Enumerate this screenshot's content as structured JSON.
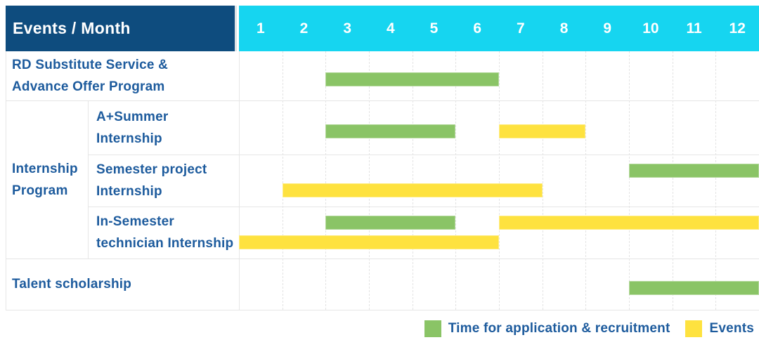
{
  "header": {
    "label": "Events / Month",
    "months": [
      "1",
      "2",
      "3",
      "4",
      "5",
      "6",
      "7",
      "8",
      "9",
      "10",
      "11",
      "12"
    ]
  },
  "group": {
    "label": "Internship Program",
    "label_lines": [
      "Internship",
      "Program"
    ]
  },
  "rows": [
    {
      "label": "RD Substitute Service & Advance Offer Program",
      "label_lines": [
        "RD Substitute Service &",
        "Advance Offer Program"
      ],
      "in_group": false,
      "bars": [
        {
          "type": "application",
          "start": 3,
          "end": 6,
          "lane": "center"
        }
      ]
    },
    {
      "label": "A+Summer Internship",
      "label_lines": [
        "A+Summer",
        "Internship"
      ],
      "in_group": true,
      "bars": [
        {
          "type": "application",
          "start": 3,
          "end": 5,
          "lane": "center"
        },
        {
          "type": "event",
          "start": 7,
          "end": 8,
          "lane": "center"
        }
      ]
    },
    {
      "label": "Semester project Internship",
      "label_lines": [
        "Semester project",
        "Internship"
      ],
      "in_group": true,
      "bars": [
        {
          "type": "application",
          "start": 10,
          "end": 12,
          "lane": "top"
        },
        {
          "type": "event",
          "start": 2,
          "end": 7,
          "lane": "bottom"
        }
      ]
    },
    {
      "label": "In-Semester technician Internship",
      "label_lines": [
        "In-Semester",
        "technician Internship"
      ],
      "in_group": true,
      "bars": [
        {
          "type": "application",
          "start": 3,
          "end": 5,
          "lane": "top"
        },
        {
          "type": "event",
          "start": 7,
          "end": 12,
          "lane": "top"
        },
        {
          "type": "event",
          "start": 1,
          "end": 6,
          "lane": "bottom"
        }
      ]
    },
    {
      "label": "Talent scholarship",
      "label_lines": [
        "Talent scholarship"
      ],
      "in_group": false,
      "bars": [
        {
          "type": "application",
          "start": 10,
          "end": 12,
          "lane": "center"
        }
      ]
    }
  ],
  "legend": {
    "items": [
      {
        "type": "application",
        "label": "Time for application & recruitment"
      },
      {
        "type": "event",
        "label": "Events"
      }
    ]
  },
  "colors": {
    "header_bg": "#0e4c7e",
    "months_bg": "#16d5f0",
    "header_text": "#ffffff",
    "label_text": "#1d5b9d",
    "application": "#8ac466",
    "event": "#fee23f"
  },
  "chart_data": {
    "type": "gantt",
    "title": "Events / Month",
    "x": {
      "label": "Month",
      "ticks": [
        1,
        2,
        3,
        4,
        5,
        6,
        7,
        8,
        9,
        10,
        11,
        12
      ]
    },
    "legend": [
      {
        "name": "Time for application & recruitment",
        "color": "#8ac466"
      },
      {
        "name": "Events",
        "color": "#fee23f"
      }
    ],
    "tasks": [
      {
        "row": "RD Substitute Service & Advance Offer Program",
        "group": null,
        "spans": [
          {
            "series": "Time for application & recruitment",
            "start_month": 3,
            "end_month": 6
          }
        ]
      },
      {
        "row": "A+Summer Internship",
        "group": "Internship Program",
        "spans": [
          {
            "series": "Time for application & recruitment",
            "start_month": 3,
            "end_month": 5
          },
          {
            "series": "Events",
            "start_month": 7,
            "end_month": 8
          }
        ]
      },
      {
        "row": "Semester project Internship",
        "group": "Internship Program",
        "spans": [
          {
            "series": "Time for application & recruitment",
            "start_month": 10,
            "end_month": 12
          },
          {
            "series": "Events",
            "start_month": 2,
            "end_month": 7
          }
        ]
      },
      {
        "row": "In-Semester technician Internship",
        "group": "Internship Program",
        "spans": [
          {
            "series": "Time for application & recruitment",
            "start_month": 3,
            "end_month": 5
          },
          {
            "series": "Events",
            "start_month": 7,
            "end_month": 12
          },
          {
            "series": "Events",
            "start_month": 1,
            "end_month": 6
          }
        ]
      },
      {
        "row": "Talent scholarship",
        "group": null,
        "spans": [
          {
            "series": "Time for application & recruitment",
            "start_month": 10,
            "end_month": 12
          }
        ]
      }
    ]
  }
}
